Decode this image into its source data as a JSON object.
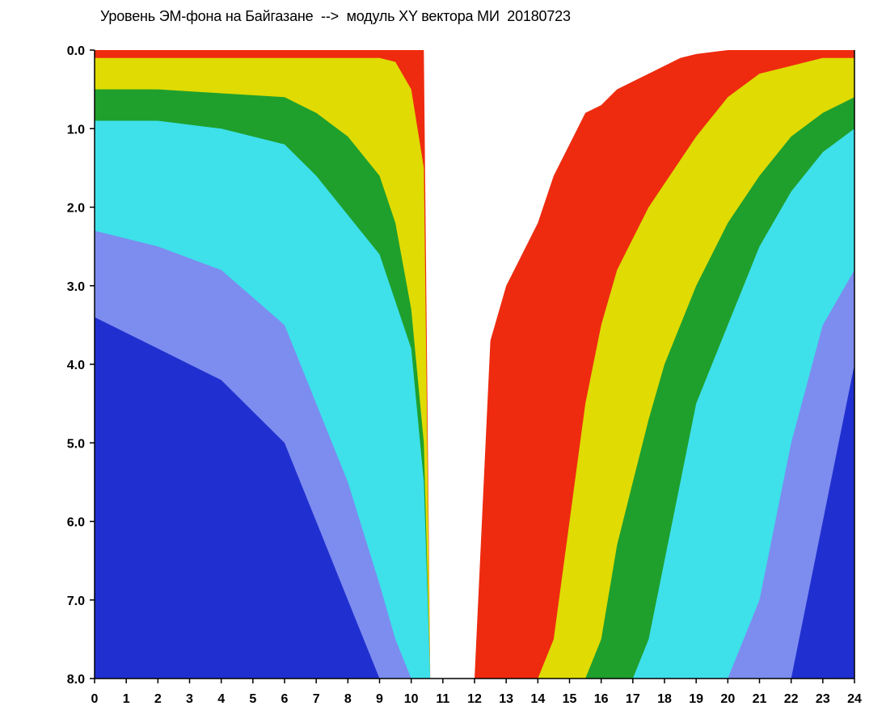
{
  "chart_data": {
    "type": "heatmap",
    "title": "Уровень ЭМ-фона на Байгазане  -->  модуль XY вектора МИ  20180723",
    "xlabel": "",
    "ylabel": "",
    "xlim": [
      0,
      24
    ],
    "ylim": [
      8.0,
      0.0
    ],
    "y_axis_inverted": true,
    "grid": false,
    "x_ticks": [
      "0",
      "1",
      "2",
      "3",
      "4",
      "5",
      "6",
      "7",
      "8",
      "9",
      "10",
      "11",
      "12",
      "13",
      "14",
      "15",
      "16",
      "17",
      "18",
      "19",
      "20",
      "21",
      "22",
      "23",
      "24"
    ],
    "y_ticks": [
      "0.0",
      "1.0",
      "2.0",
      "3.0",
      "4.0",
      "5.0",
      "6.0",
      "7.0",
      "8.0"
    ],
    "color_levels": [
      "#ffffff",
      "#ef1c10",
      "#f0e000",
      "#1c9a1c",
      "#3ee0ea",
      "#7d8cef",
      "#2030d0"
    ],
    "boundaries": {
      "hours": [
        0,
        2,
        4,
        6,
        7,
        8,
        9,
        9.5,
        10,
        10.4,
        10.6,
        11,
        11.5,
        12,
        12.5,
        13,
        13.5,
        14,
        14.5,
        15,
        15.5,
        16,
        16.5,
        17,
        17.5,
        18,
        18.5,
        19,
        20,
        21,
        22,
        23,
        24
      ],
      "level_0_1": [
        0,
        0,
        0,
        0,
        0,
        0,
        0,
        0,
        0,
        0,
        8,
        8,
        8,
        8,
        3.7,
        3,
        2.6,
        2.2,
        1.6,
        1.2,
        0.8,
        0.7,
        0.5,
        0.4,
        0.3,
        0.2,
        0.1,
        0.05,
        0,
        0,
        0,
        0,
        0
      ],
      "level_1_2": [
        0.1,
        0.1,
        0.1,
        0.1,
        0.1,
        0.1,
        0.1,
        0.15,
        0.5,
        1.5,
        8,
        8,
        8,
        8,
        8,
        8,
        8,
        8,
        7.5,
        6,
        4.5,
        3.5,
        2.8,
        2.4,
        2,
        1.7,
        1.4,
        1.1,
        0.6,
        0.3,
        0.2,
        0.1,
        0.1
      ],
      "level_2_3": [
        0.5,
        0.5,
        0.55,
        0.6,
        0.8,
        1.1,
        1.6,
        2.2,
        3.3,
        5,
        8,
        8,
        8,
        8,
        8,
        8,
        8,
        8,
        8,
        8,
        8,
        7.5,
        6.3,
        5.5,
        4.7,
        4,
        3.5,
        3,
        2.2,
        1.6,
        1.1,
        0.8,
        0.6
      ],
      "level_3_4": [
        0.9,
        0.9,
        1,
        1.2,
        1.6,
        2.1,
        2.6,
        3.2,
        3.8,
        5.5,
        8,
        8,
        8,
        8,
        8,
        8,
        8,
        8,
        8,
        8,
        8,
        8,
        8,
        8,
        7.5,
        6.5,
        5.5,
        4.5,
        3.5,
        2.5,
        1.8,
        1.3,
        1
      ],
      "level_4_5": [
        2.3,
        2.5,
        2.8,
        3.5,
        4.5,
        5.5,
        6.8,
        7.5,
        8,
        8,
        8,
        8,
        8,
        8,
        8,
        8,
        8,
        8,
        8,
        8,
        8,
        8,
        8,
        8,
        8,
        8,
        8,
        8,
        8,
        7,
        5,
        3.5,
        2.8
      ],
      "level_5_6": [
        3.4,
        3.8,
        4.2,
        5,
        6,
        7,
        8,
        8,
        8,
        8,
        8,
        8,
        8,
        8,
        8,
        8,
        8,
        8,
        8,
        8,
        8,
        8,
        8,
        8,
        8,
        8,
        8,
        8,
        8,
        8,
        8,
        6,
        4
      ]
    }
  }
}
